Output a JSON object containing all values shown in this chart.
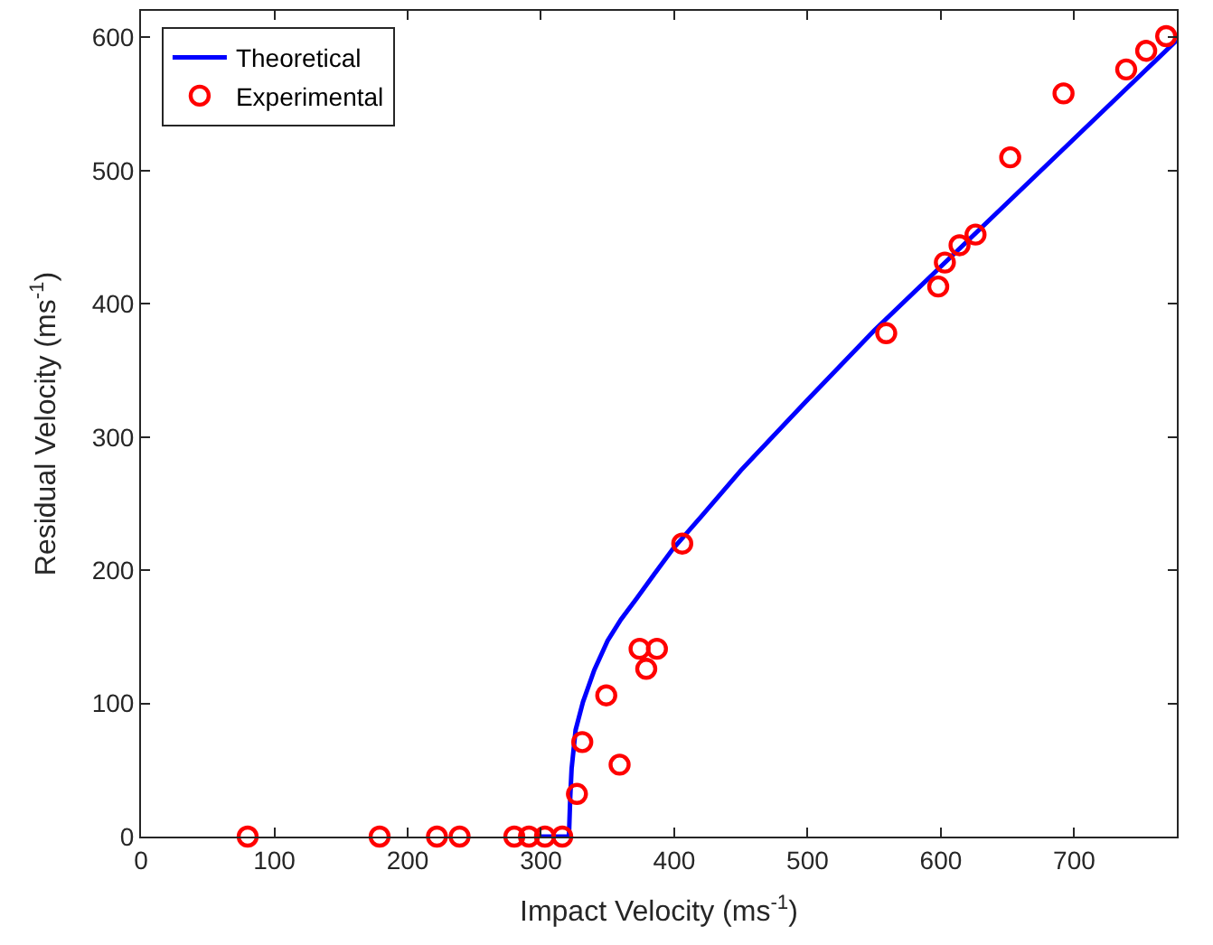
{
  "chart_data": {
    "type": "line",
    "xlabel": "Impact Velocity (ms$^{-1}$)",
    "ylabel": "Residual Velocity (ms$^{-1}$)",
    "xlim": [
      0,
      777
    ],
    "ylim": [
      0,
      620
    ],
    "xticks": [
      0,
      100,
      200,
      300,
      400,
      500,
      600,
      700
    ],
    "yticks": [
      0,
      100,
      200,
      300,
      400,
      500,
      600
    ],
    "legend": "top left",
    "series": [
      {
        "name": "Theoretical",
        "color": "#0000ff",
        "marker": "none",
        "line_style": "solid",
        "x": [
          300,
          321,
          322,
          323,
          326,
          331.5,
          340,
          350,
          360,
          372,
          385,
          399,
          420,
          450,
          500,
          550,
          600,
          650,
          700,
          750,
          777
        ],
        "values": [
          0,
          0,
          30,
          51,
          80,
          101,
          125,
          147,
          163,
          179,
          197,
          216,
          240,
          275,
          328,
          380,
          428,
          476,
          524,
          572,
          598
        ]
      },
      {
        "name": "Experimental",
        "type": "scatter",
        "color": "#ff0000",
        "marker": "circle",
        "x": [
          80,
          179,
          222,
          239,
          280,
          291,
          303,
          316,
          327,
          331,
          349,
          359,
          374,
          379,
          387,
          406,
          559,
          598,
          603,
          614,
          626,
          652,
          692,
          739,
          754,
          769
        ],
        "values": [
          0,
          0,
          0,
          0,
          0,
          0,
          0,
          0,
          32,
          71,
          106,
          54,
          141,
          126,
          141,
          220,
          378,
          413,
          431,
          444,
          452,
          510,
          558,
          576,
          590,
          601
        ]
      }
    ]
  }
}
